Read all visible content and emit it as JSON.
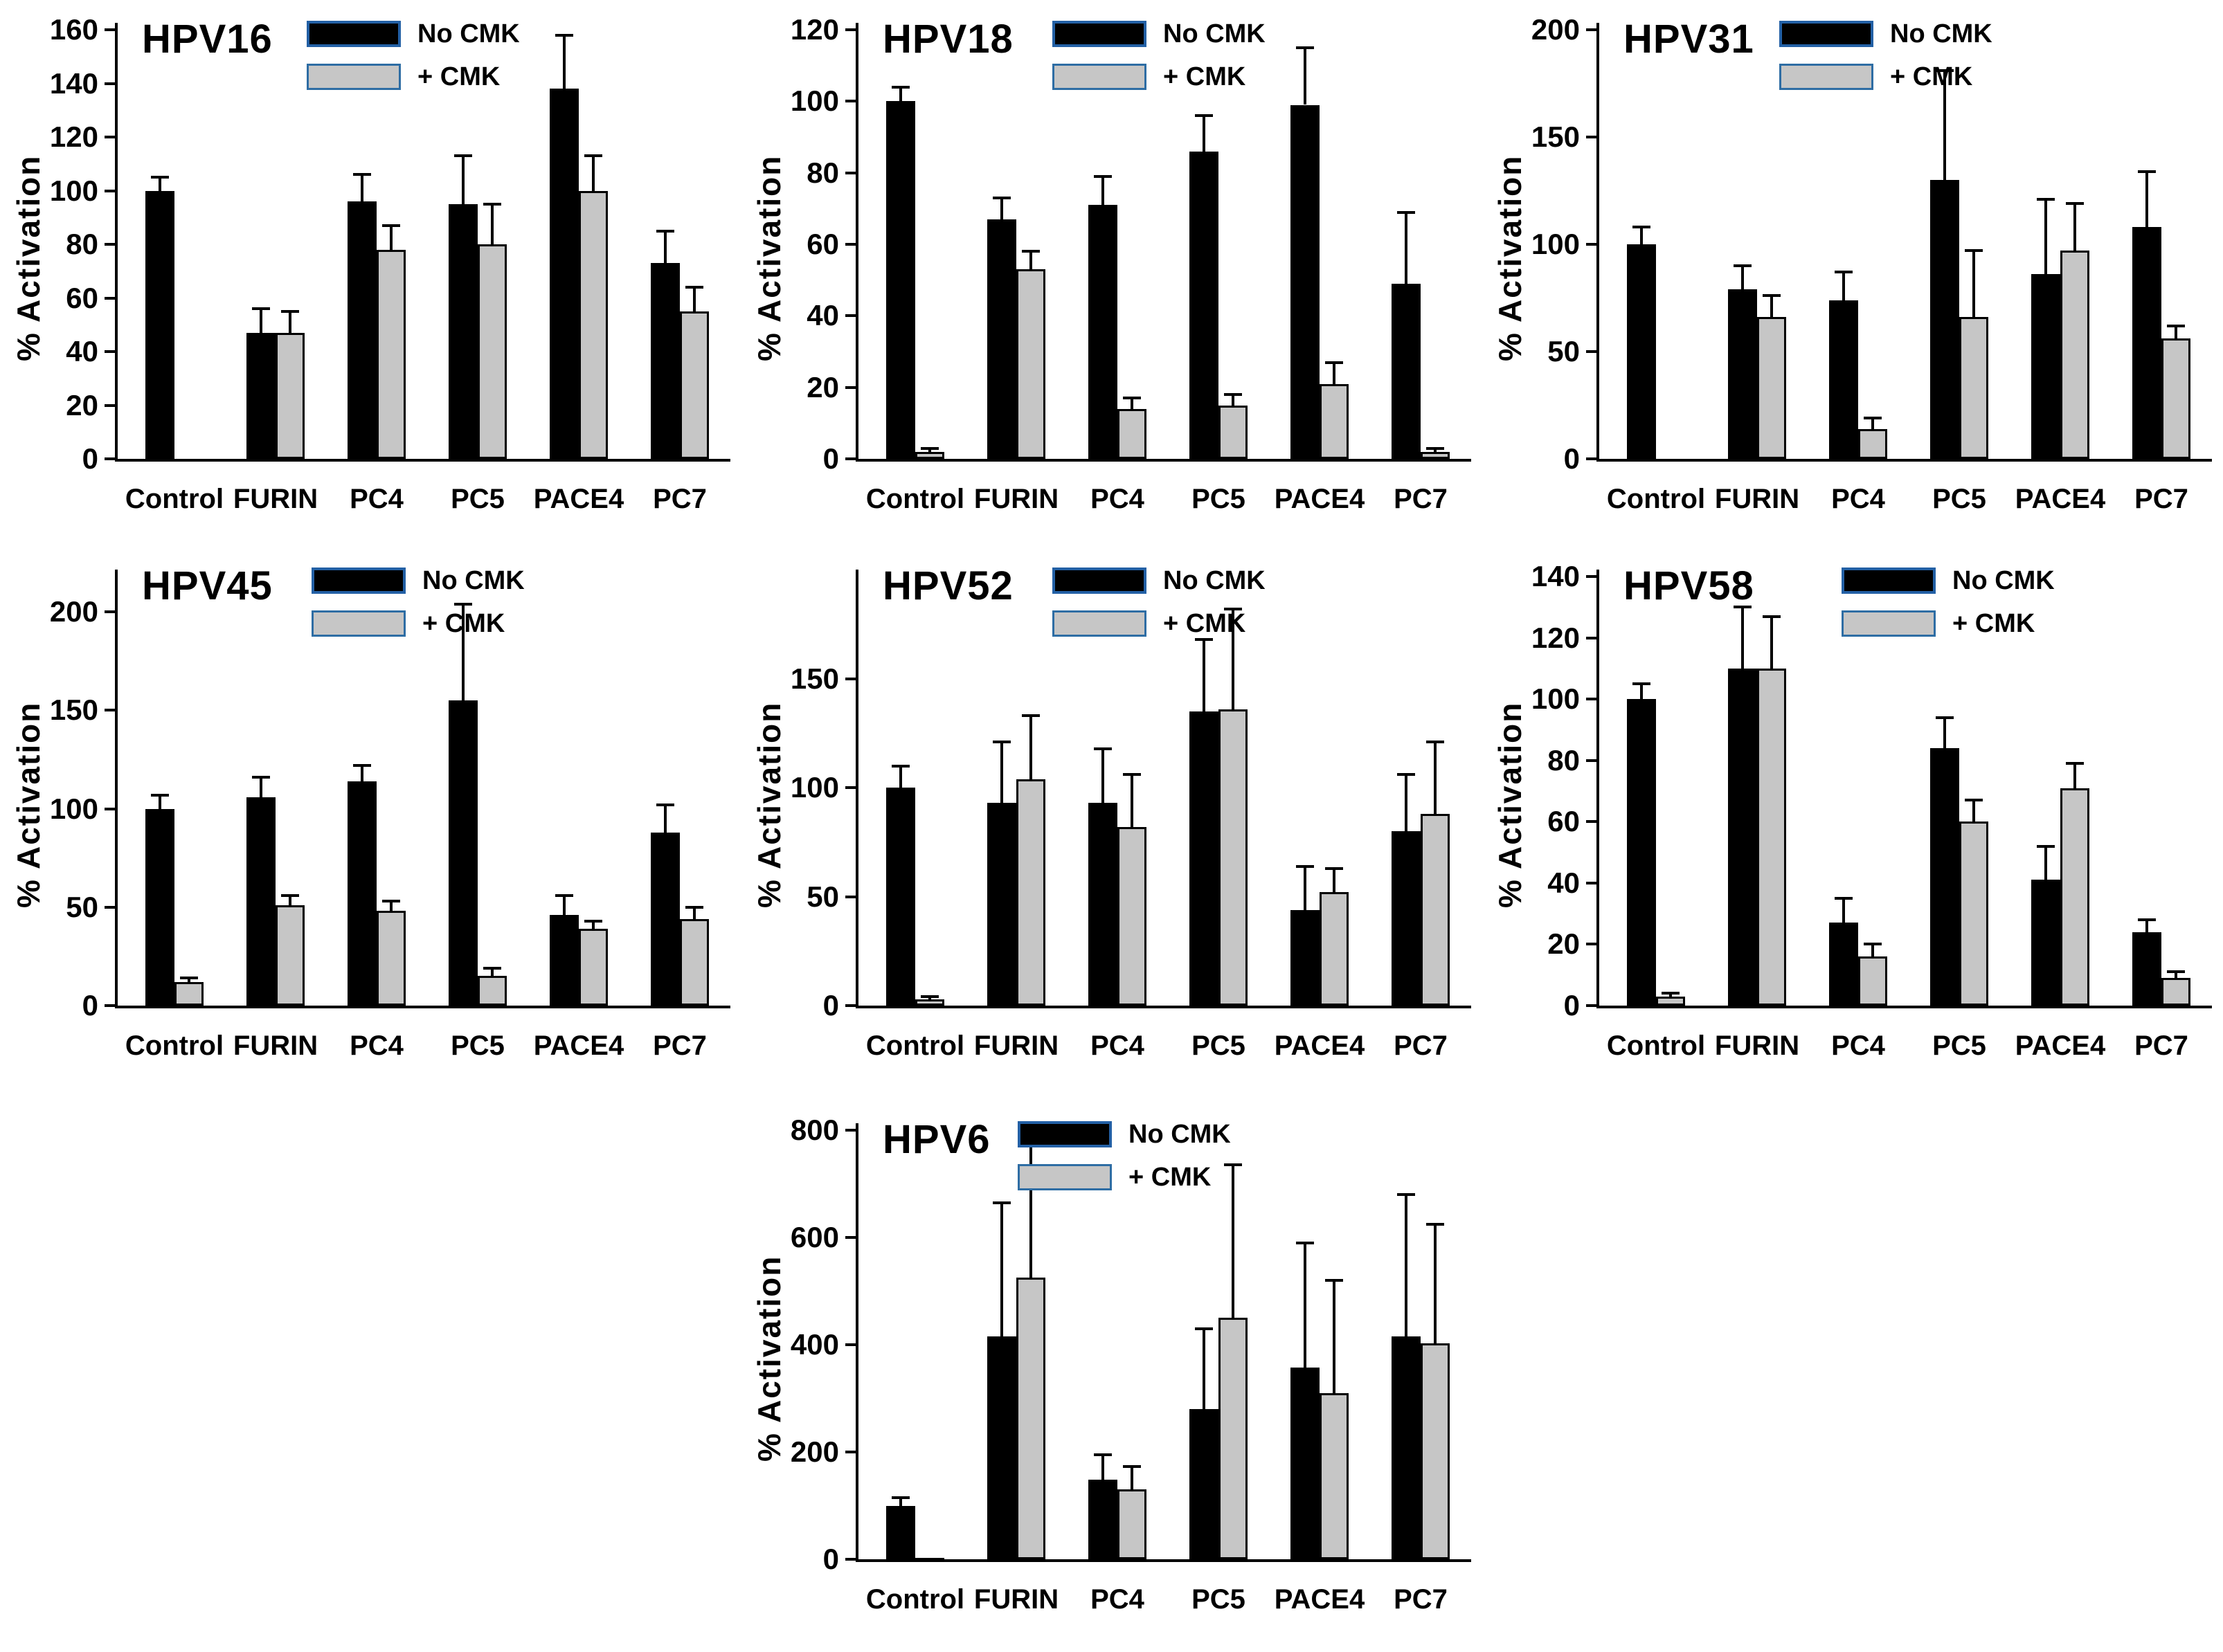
{
  "figure": {
    "y_axis_label": "% Activation",
    "legend": {
      "no_cmk": "No CMK",
      "cmk": "+ CMK"
    },
    "colors": {
      "bar_no_cmk": "#000000",
      "bar_cmk": "#c6c6c6",
      "legend_border_blue": "#2e6da4",
      "error_bar": "#000000",
      "text": "#000000",
      "background": "#ffffff"
    }
  },
  "chart_data": [
    {
      "type": "bar",
      "title": "HPV16",
      "xlabel": "",
      "ylabel": "% Activation",
      "categories": [
        "Control",
        "FURIN",
        "PC4",
        "PC5",
        "PACE4",
        "PC7"
      ],
      "ylim": [
        0,
        160
      ],
      "yticks": [
        0,
        20,
        40,
        60,
        80,
        100,
        120,
        140,
        160
      ],
      "grid": false,
      "legend_position": "top-center",
      "series": [
        {
          "name": "No CMK",
          "values": [
            100,
            47,
            96,
            95,
            138,
            73
          ],
          "errors": [
            5,
            9,
            10,
            18,
            20,
            12
          ]
        },
        {
          "name": "+ CMK",
          "values": [
            null,
            47,
            78,
            80,
            100,
            55
          ],
          "errors": [
            null,
            8,
            9,
            15,
            13,
            9
          ]
        }
      ]
    },
    {
      "type": "bar",
      "title": "HPV18",
      "xlabel": "",
      "ylabel": "% Activation",
      "categories": [
        "Control",
        "FURIN",
        "PC4",
        "PC5",
        "PACE4",
        "PC7"
      ],
      "ylim": [
        0,
        120
      ],
      "yticks": [
        0,
        20,
        40,
        60,
        80,
        100,
        120
      ],
      "grid": false,
      "legend_position": "top-center",
      "series": [
        {
          "name": "No CMK",
          "values": [
            100,
            67,
            71,
            86,
            99,
            49
          ],
          "errors": [
            4,
            6,
            8,
            10,
            16,
            20
          ]
        },
        {
          "name": "+ CMK",
          "values": [
            2,
            53,
            14,
            15,
            21,
            2
          ],
          "errors": [
            1,
            5,
            3,
            3,
            6,
            1
          ]
        }
      ]
    },
    {
      "type": "bar",
      "title": "HPV31",
      "xlabel": "",
      "ylabel": "% Activation",
      "categories": [
        "Control",
        "FURIN",
        "PC4",
        "PC5",
        "PACE4",
        "PC7"
      ],
      "ylim": [
        0,
        200
      ],
      "yticks": [
        0,
        50,
        100,
        150,
        200
      ],
      "grid": false,
      "legend_position": "top-center",
      "series": [
        {
          "name": "No CMK",
          "values": [
            100,
            79,
            74,
            130,
            86,
            108
          ],
          "errors": [
            8,
            11,
            13,
            51,
            35,
            26
          ]
        },
        {
          "name": "+ CMK",
          "values": [
            null,
            66,
            14,
            66,
            97,
            56
          ],
          "errors": [
            null,
            10,
            5,
            31,
            22,
            6
          ]
        }
      ]
    },
    {
      "type": "bar",
      "title": "HPV45",
      "xlabel": "",
      "ylabel": "% Activation",
      "categories": [
        "Control",
        "FURIN",
        "PC4",
        "PC5",
        "PACE4",
        "PC7"
      ],
      "ylim": [
        0,
        218
      ],
      "yticks": [
        0,
        50,
        100,
        150,
        200
      ],
      "grid": false,
      "legend_position": "top-center",
      "series": [
        {
          "name": "No CMK",
          "values": [
            100,
            106,
            114,
            155,
            46,
            88
          ],
          "errors": [
            7,
            10,
            8,
            49,
            10,
            14
          ]
        },
        {
          "name": "+ CMK",
          "values": [
            12,
            51,
            48,
            15,
            39,
            44
          ],
          "errors": [
            2,
            5,
            5,
            4,
            4,
            6
          ]
        }
      ]
    },
    {
      "type": "bar",
      "title": "HPV52",
      "xlabel": "",
      "ylabel": "% Activation",
      "categories": [
        "Control",
        "FURIN",
        "PC4",
        "PC5",
        "PACE4",
        "PC7"
      ],
      "ylim": [
        0,
        197
      ],
      "yticks": [
        0,
        50,
        100,
        150
      ],
      "grid": false,
      "legend_position": "top-center",
      "series": [
        {
          "name": "No CMK",
          "values": [
            100,
            93,
            93,
            135,
            44,
            80
          ],
          "errors": [
            10,
            28,
            25,
            33,
            20,
            26
          ]
        },
        {
          "name": "+ CMK",
          "values": [
            3,
            104,
            82,
            136,
            52,
            88
          ],
          "errors": [
            1,
            29,
            24,
            46,
            11,
            33
          ]
        }
      ]
    },
    {
      "type": "bar",
      "title": "HPV58",
      "xlabel": "",
      "ylabel": "% Activation",
      "categories": [
        "Control",
        "FURIN",
        "PC4",
        "PC5",
        "PACE4",
        "PC7"
      ],
      "ylim": [
        0,
        140
      ],
      "yticks": [
        0,
        20,
        40,
        60,
        80,
        100,
        120,
        140
      ],
      "grid": false,
      "legend_position": "top-center",
      "series": [
        {
          "name": "No CMK",
          "values": [
            100,
            110,
            27,
            84,
            41,
            24
          ],
          "errors": [
            5,
            20,
            8,
            10,
            11,
            4
          ]
        },
        {
          "name": "+ CMK",
          "values": [
            3,
            110,
            16,
            60,
            71,
            9
          ],
          "errors": [
            1,
            17,
            4,
            7,
            8,
            2
          ]
        }
      ]
    },
    {
      "type": "bar",
      "title": "HPV6",
      "xlabel": "",
      "ylabel": "% Activation",
      "categories": [
        "Control",
        "FURIN",
        "PC4",
        "PC5",
        "PACE4",
        "PC7"
      ],
      "ylim": [
        0,
        800
      ],
      "yticks": [
        0,
        200,
        400,
        600,
        800
      ],
      "grid": false,
      "legend_position": "top-center",
      "series": [
        {
          "name": "No CMK",
          "values": [
            100,
            415,
            148,
            280,
            358,
            415
          ],
          "errors": [
            15,
            250,
            47,
            150,
            232,
            265
          ]
        },
        {
          "name": "+ CMK",
          "values": [
            3,
            525,
            130,
            450,
            310,
            402
          ],
          "errors": [
            0,
            250,
            43,
            285,
            210,
            223
          ]
        }
      ]
    }
  ]
}
